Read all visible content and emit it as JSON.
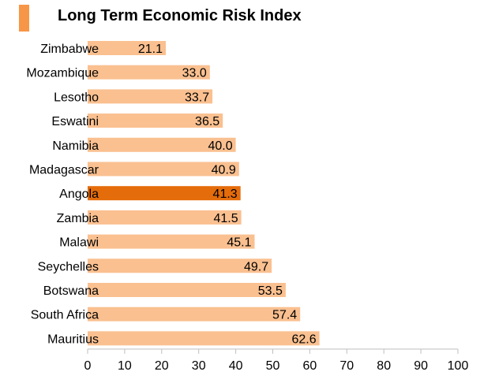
{
  "chart_data": {
    "type": "bar",
    "orientation": "horizontal",
    "title": "Long Term Economic Risk Index",
    "categories": [
      "Zimbabwe",
      "Mozambique",
      "Lesotho",
      "Eswatini",
      "Namibia",
      "Madagascar",
      "Angola",
      "Zambia",
      "Malawi",
      "Seychelles",
      "Botswana",
      "South Africa",
      "Mauritius"
    ],
    "values": [
      21.1,
      33.0,
      33.7,
      36.5,
      40.0,
      40.9,
      41.3,
      41.5,
      45.1,
      49.7,
      53.5,
      57.4,
      62.6
    ],
    "value_labels": [
      "21.1",
      "33.0",
      "33.7",
      "36.5",
      "40.0",
      "40.9",
      "41.3",
      "41.5",
      "45.1",
      "49.7",
      "53.5",
      "57.4",
      "62.6"
    ],
    "highlight": "Angola",
    "xlim": [
      0,
      100
    ],
    "xticks": [
      0,
      10,
      20,
      30,
      40,
      50,
      60,
      70,
      80,
      90,
      100
    ],
    "xlabel": "",
    "ylabel": "",
    "grid": false,
    "legend": "none"
  },
  "colors": {
    "bar": "#fac090",
    "highlight": "#e46c0a",
    "accent": "#f79646",
    "axis": "#bfbfbf"
  }
}
